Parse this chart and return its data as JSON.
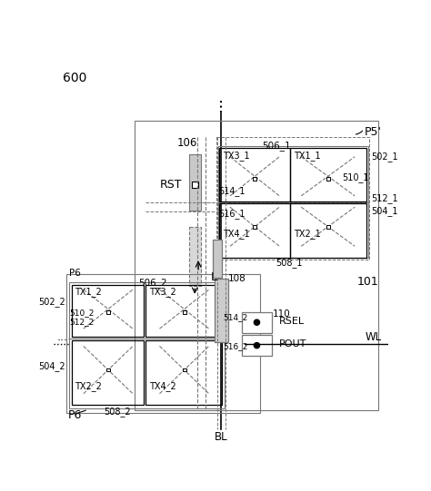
{
  "bg_color": "#ffffff",
  "lc": "#000000",
  "gc": "#777777",
  "label_600": "600",
  "label_P5p": "P5'",
  "label_101": "101",
  "label_RST": "RST",
  "label_106": "106",
  "label_L": "L",
  "label_108": "108",
  "label_110": "110",
  "label_RSEL": "RSEL",
  "label_POUT": "POUT",
  "label_WL": "WL",
  "label_BL": "BL",
  "label_P6": "P6",
  "label_506_1": "506_1",
  "label_502_1": "502_1",
  "label_504_1": "504_1",
  "label_508_1": "508_1",
  "label_510_1": "510_1",
  "label_512_1": "512_1",
  "label_514_1": "514_1",
  "label_516_1": "516_1",
  "label_TX3_1": "TX3_1",
  "label_TX1_1": "TX1_1",
  "label_TX4_1": "TX4_1",
  "label_TX2_1": "TX2_1",
  "label_506_2": "506_2",
  "label_502_2": "502_2",
  "label_504_2": "504_2",
  "label_508_2": "508_2",
  "label_510_2": "510_2",
  "label_512_2": "512_2",
  "label_514_2": "514_2",
  "label_516_2": "516_2",
  "label_TX1_2": "TX1_2",
  "label_TX3_2": "TX3_2",
  "label_TX2_2": "TX2_2",
  "label_TX4_2": "TX4_2"
}
